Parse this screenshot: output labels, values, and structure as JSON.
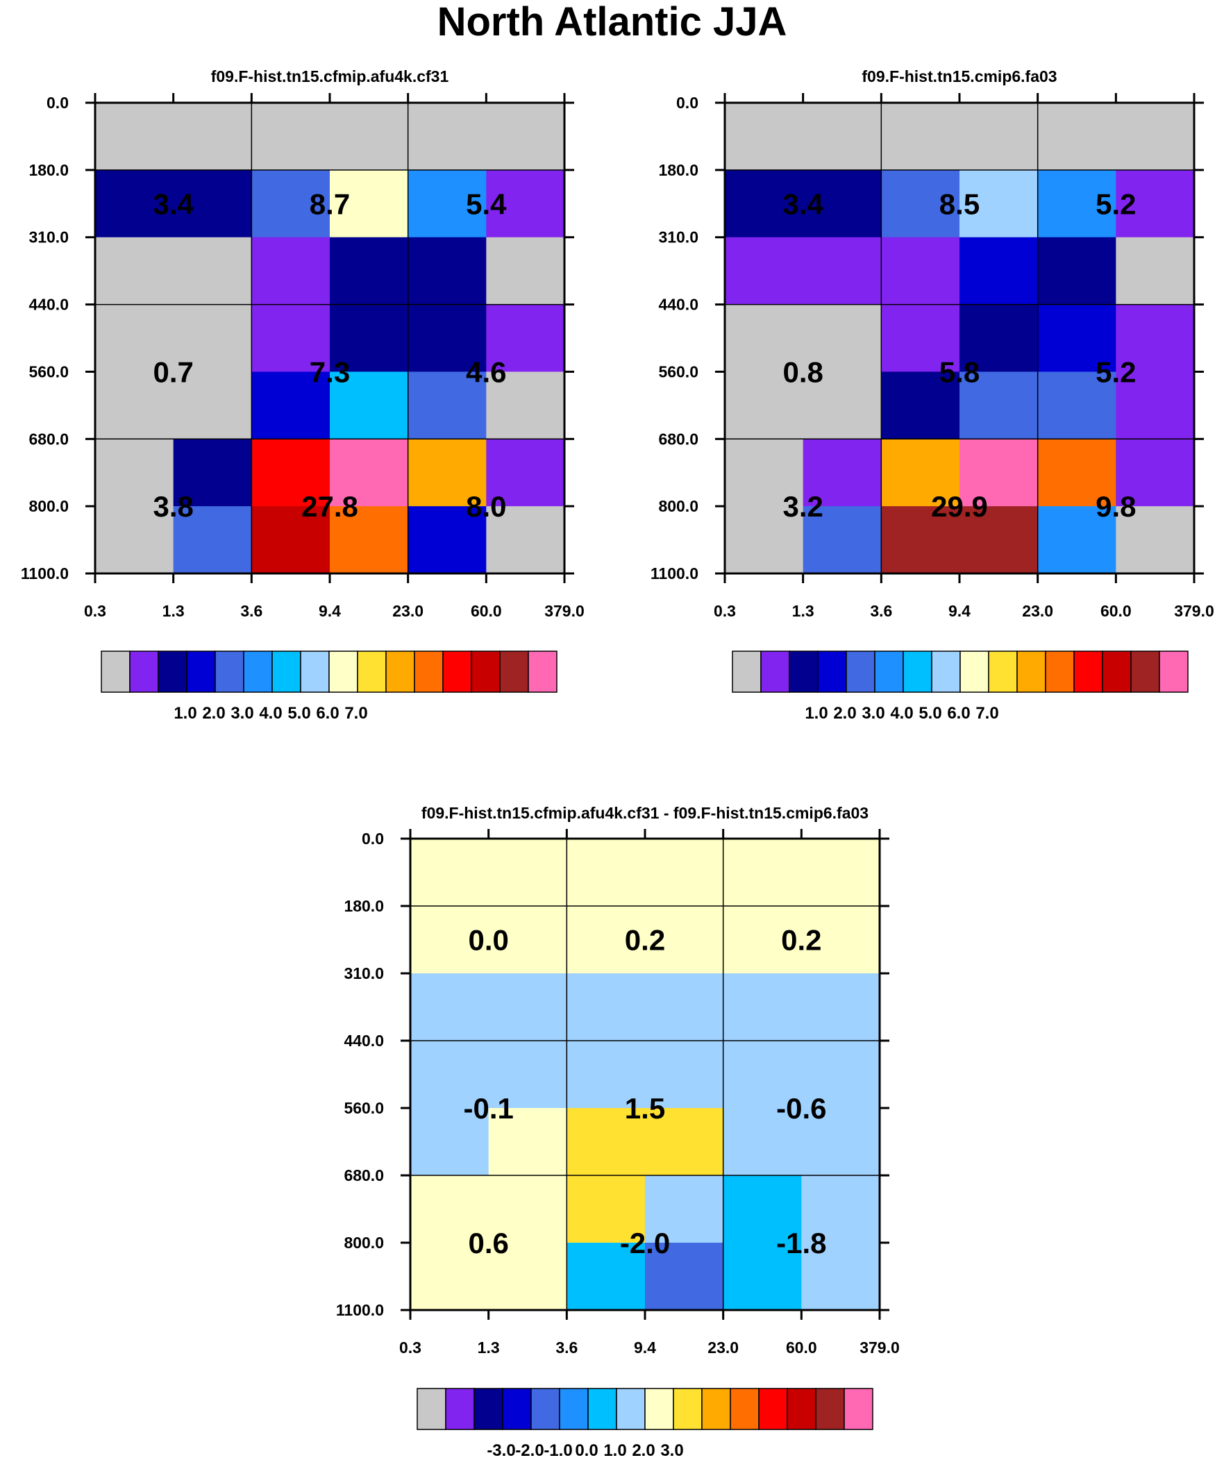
{
  "title": "North Atlantic JJA",
  "colors": {
    "bin_colors": [
      "#c8c8c8",
      "#8224f0",
      "#02008e",
      "#0000d4",
      "#4169e1",
      "#1e90ff",
      "#00bfff",
      "#a0d2ff",
      "#ffffc8",
      "#ffe132",
      "#ffaa00",
      "#ff6e00",
      "#ff0000",
      "#c80000",
      "#a02323",
      "#ff69b4"
    ],
    "grid_line": "#000000",
    "background": "#ffffff"
  },
  "chart_data": [
    {
      "type": "heatmap",
      "title": "f09.F-hist.tn15.cfmip.afu4k.cf31",
      "x_ticks": [
        "0.3",
        "1.3",
        "3.6",
        "9.4",
        "23.0",
        "60.0",
        "379.0"
      ],
      "y_ticks": [
        "0.0",
        "180.0",
        "310.0",
        "440.0",
        "560.0",
        "680.0",
        "800.0",
        "1100.0"
      ],
      "fine_cells": [
        [
          0,
          0,
          0,
          0,
          0,
          0
        ],
        [
          2,
          2,
          4,
          8,
          5,
          1
        ],
        [
          0,
          0,
          1,
          2,
          2,
          0
        ],
        [
          0,
          0,
          1,
          2,
          2,
          1
        ],
        [
          0,
          0,
          3,
          6,
          4,
          0
        ],
        [
          0,
          2,
          12,
          15,
          10,
          1
        ],
        [
          0,
          4,
          13,
          11,
          3,
          0
        ]
      ],
      "cell_values": [
        [
          "3.4",
          "8.7",
          "5.4"
        ],
        [
          "0.7",
          "7.3",
          "4.6"
        ],
        [
          "3.8",
          "27.8",
          "8.0"
        ]
      ],
      "colorbar_labels": [
        "1.0",
        "2.0",
        "3.0",
        "4.0",
        "5.0",
        "6.0",
        "7.0"
      ]
    },
    {
      "type": "heatmap",
      "title": "f09.F-hist.tn15.cmip6.fa03",
      "x_ticks": [
        "0.3",
        "1.3",
        "3.6",
        "9.4",
        "23.0",
        "60.0",
        "379.0"
      ],
      "y_ticks": [
        "0.0",
        "180.0",
        "310.0",
        "440.0",
        "560.0",
        "680.0",
        "800.0",
        "1100.0"
      ],
      "fine_cells": [
        [
          0,
          0,
          0,
          0,
          0,
          0
        ],
        [
          2,
          2,
          4,
          7,
          5,
          1
        ],
        [
          1,
          1,
          1,
          3,
          2,
          0
        ],
        [
          0,
          0,
          1,
          2,
          3,
          1
        ],
        [
          0,
          0,
          2,
          4,
          4,
          1
        ],
        [
          0,
          1,
          10,
          15,
          11,
          1
        ],
        [
          0,
          4,
          14,
          14,
          5,
          0
        ]
      ],
      "cell_values": [
        [
          "3.4",
          "8.5",
          "5.2"
        ],
        [
          "0.8",
          "5.8",
          "5.2"
        ],
        [
          "3.2",
          "29.9",
          "9.8"
        ]
      ],
      "colorbar_labels": [
        "1.0",
        "2.0",
        "3.0",
        "4.0",
        "5.0",
        "6.0",
        "7.0"
      ]
    },
    {
      "type": "heatmap",
      "title": "f09.F-hist.tn15.cfmip.afu4k.cf31 - f09.F-hist.tn15.cmip6.fa03",
      "x_ticks": [
        "0.3",
        "1.3",
        "3.6",
        "9.4",
        "23.0",
        "60.0",
        "379.0"
      ],
      "y_ticks": [
        "0.0",
        "180.0",
        "310.0",
        "440.0",
        "560.0",
        "680.0",
        "800.0",
        "1100.0"
      ],
      "fine_cells": [
        [
          8,
          8,
          8,
          8,
          8,
          8
        ],
        [
          8,
          8,
          8,
          8,
          8,
          8
        ],
        [
          7,
          7,
          7,
          7,
          7,
          7
        ],
        [
          7,
          7,
          7,
          7,
          7,
          7
        ],
        [
          7,
          8,
          9,
          9,
          7,
          7
        ],
        [
          8,
          8,
          9,
          7,
          6,
          7
        ],
        [
          8,
          8,
          6,
          4,
          6,
          7
        ]
      ],
      "cell_values": [
        [
          "0.0",
          "0.2",
          "0.2"
        ],
        [
          "-0.1",
          "1.5",
          "-0.6"
        ],
        [
          "0.6",
          "-2.0",
          "-1.8"
        ]
      ],
      "colorbar_labels": [
        "-3.0",
        "-2.0",
        "-1.0",
        "0.0",
        "1.0",
        "2.0",
        "3.0"
      ]
    }
  ]
}
